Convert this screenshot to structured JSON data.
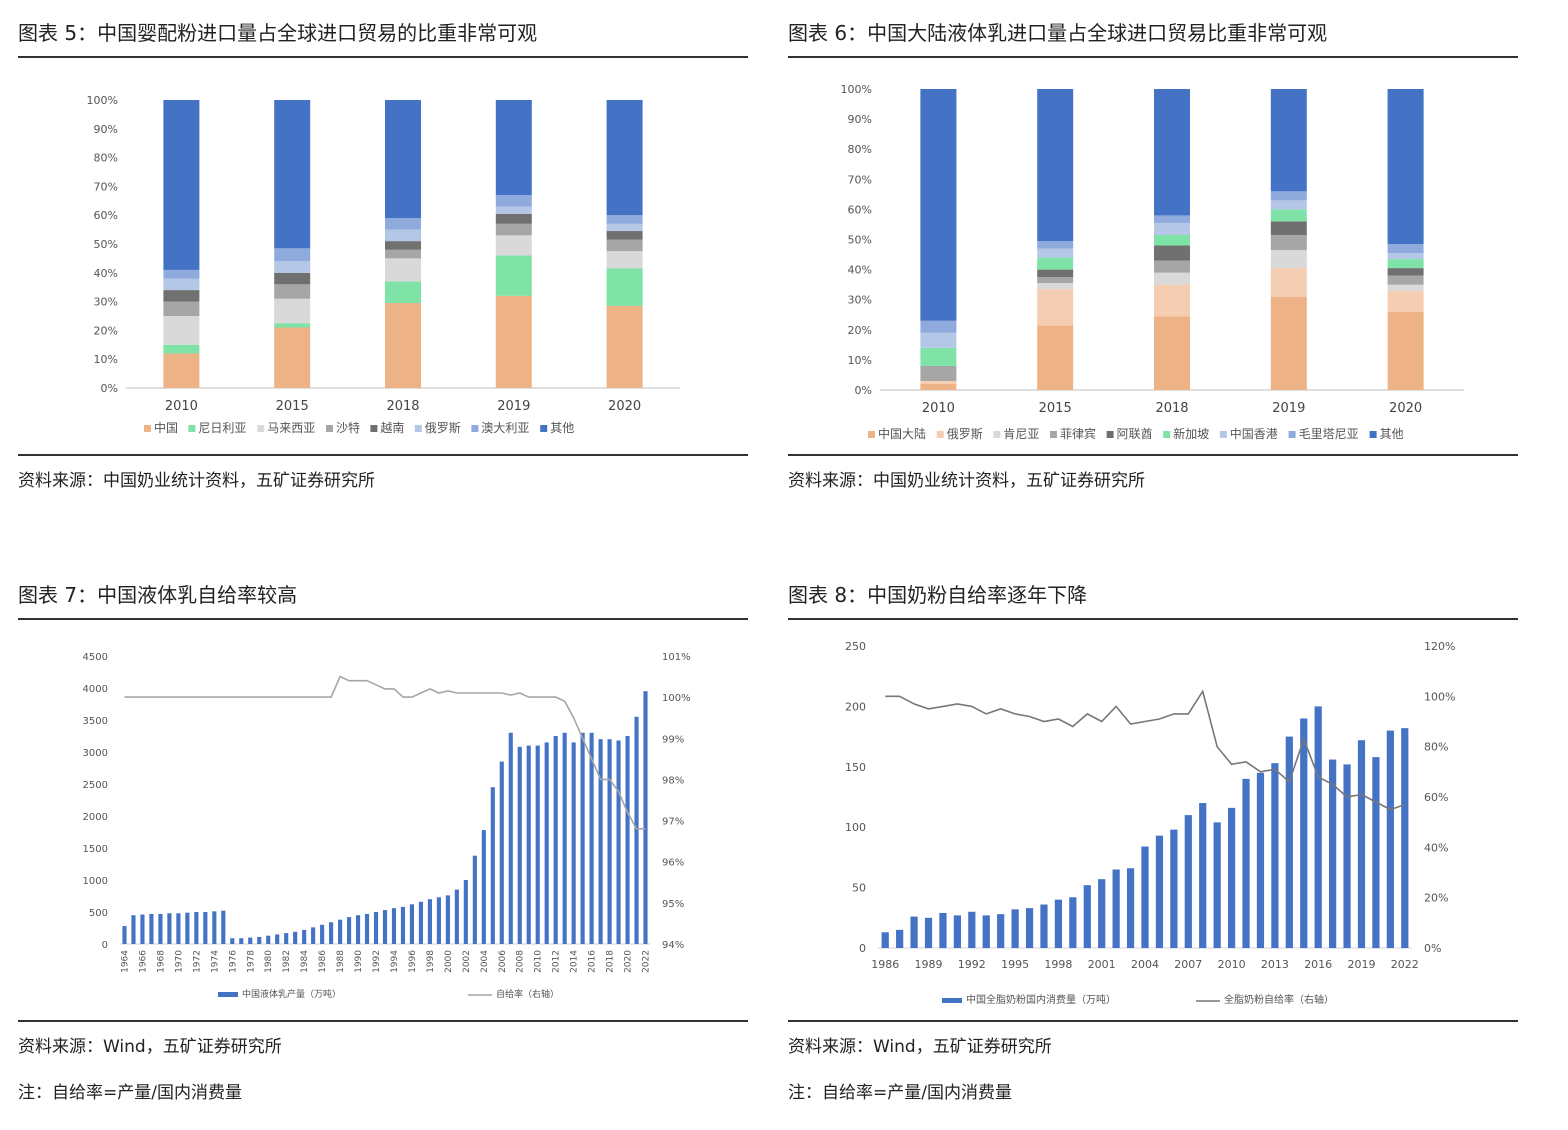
{
  "panels": [
    {
      "title": "图表 5：中国婴配粉进口量占全球进口贸易的比重非常可观",
      "source": "资料来源：中国奶业统计资料，五矿证券研究所"
    },
    {
      "title": "图表 6：中国大陆液体乳进口量占全球进口贸易比重非常可观",
      "source": "资料来源：中国奶业统计资料，五矿证券研究所"
    },
    {
      "title": "图表 7：中国液体乳自给率较高",
      "source": "资料来源：Wind，五矿证券研究所",
      "note": "注：自给率=产量/国内消费量"
    },
    {
      "title": "图表 8：中国奶粉自给率逐年下降",
      "source": "资料来源：Wind，五矿证券研究所",
      "note": "注：自给率=产量/国内消费量"
    }
  ],
  "chart_data": [
    {
      "type": "bar",
      "stacked": true,
      "categories": [
        "2010",
        "2015",
        "2018",
        "2019",
        "2020"
      ],
      "yticks": [
        "0%",
        "10%",
        "20%",
        "30%",
        "40%",
        "50%",
        "60%",
        "70%",
        "80%",
        "90%",
        "100%"
      ],
      "ylim": [
        0,
        100
      ],
      "legend_position": "bottom",
      "series": [
        {
          "name": "中国",
          "color": "#EDB386",
          "values": [
            12,
            21,
            29.5,
            32,
            28.5
          ]
        },
        {
          "name": "尼日利亚",
          "color": "#7FE3A7",
          "values": [
            3,
            1.5,
            7.5,
            14,
            13
          ]
        },
        {
          "name": "马来西亚",
          "color": "#D9D9D9",
          "values": [
            10,
            8.5,
            8,
            7,
            6
          ]
        },
        {
          "name": "沙特",
          "color": "#A6A6A6",
          "values": [
            5,
            5,
            3,
            4,
            4
          ]
        },
        {
          "name": "越南",
          "color": "#707070",
          "values": [
            4,
            4,
            3,
            3.5,
            3
          ]
        },
        {
          "name": "俄罗斯",
          "color": "#B4C7E7",
          "values": [
            4,
            4,
            4,
            2.5,
            2.5
          ]
        },
        {
          "name": "澳大利亚",
          "color": "#8FAADC",
          "values": [
            3,
            4.5,
            4,
            4,
            3
          ]
        },
        {
          "name": "其他",
          "color": "#4472C4",
          "values": [
            59,
            51.5,
            41,
            33,
            40
          ]
        }
      ]
    },
    {
      "type": "bar",
      "stacked": true,
      "categories": [
        "2010",
        "2015",
        "2018",
        "2019",
        "2020"
      ],
      "yticks": [
        "0%",
        "10%",
        "20%",
        "30%",
        "40%",
        "50%",
        "60%",
        "70%",
        "80%",
        "90%",
        "100%"
      ],
      "ylim": [
        0,
        100
      ],
      "legend_position": "bottom",
      "series": [
        {
          "name": "中国大陆",
          "color": "#EDB386",
          "values": [
            2,
            21.5,
            24.5,
            31,
            26
          ]
        },
        {
          "name": "俄罗斯",
          "color": "#F5CDB2",
          "values": [
            1,
            12,
            10.5,
            9.5,
            7
          ]
        },
        {
          "name": "肯尼亚",
          "color": "#D9D9D9",
          "values": [
            0,
            2,
            4,
            6,
            2
          ]
        },
        {
          "name": "菲律宾",
          "color": "#A6A6A6",
          "values": [
            5,
            2,
            4,
            5,
            3
          ]
        },
        {
          "name": "阿联酋",
          "color": "#707070",
          "values": [
            0,
            2.5,
            5,
            4.5,
            2.5
          ]
        },
        {
          "name": "新加坡",
          "color": "#7FE3A7",
          "values": [
            6,
            4,
            3.5,
            4,
            3
          ]
        },
        {
          "name": "中国香港",
          "color": "#B4C7E7",
          "values": [
            5,
            3,
            4,
            3,
            2
          ]
        },
        {
          "name": "毛里塔尼亚",
          "color": "#8FAADC",
          "values": [
            4,
            2.5,
            2.5,
            3,
            3
          ]
        },
        {
          "name": "其他",
          "color": "#4472C4",
          "values": [
            77,
            50.5,
            42,
            34,
            51.5
          ]
        }
      ]
    },
    {
      "type": "bar+line",
      "x": [
        "1964",
        "1965",
        "1966",
        "1967",
        "1968",
        "1969",
        "1970",
        "1971",
        "1972",
        "1973",
        "1974",
        "1975",
        "1976",
        "1977",
        "1978",
        "1979",
        "1980",
        "1981",
        "1982",
        "1983",
        "1984",
        "1985",
        "1986",
        "1987",
        "1988",
        "1989",
        "1990",
        "1991",
        "1992",
        "1993",
        "1994",
        "1995",
        "1996",
        "1997",
        "1998",
        "1999",
        "2000",
        "2001",
        "2002",
        "2003",
        "2004",
        "2005",
        "2006",
        "2007",
        "2008",
        "2009",
        "2010",
        "2011",
        "2012",
        "2013",
        "2014",
        "2015",
        "2016",
        "2017",
        "2018",
        "2019",
        "2020",
        "2021",
        "2022"
      ],
      "xticks": [
        "1964",
        "1966",
        "1968",
        "1970",
        "1972",
        "1974",
        "1976",
        "1978",
        "1980",
        "1982",
        "1984",
        "1986",
        "1988",
        "1990",
        "1992",
        "1994",
        "1996",
        "1998",
        "2000",
        "2002",
        "2004",
        "2006",
        "2008",
        "2010",
        "2012",
        "2014",
        "2016",
        "2018",
        "2020",
        "2022"
      ],
      "yticks_left": [
        "0",
        "500",
        "1000",
        "1500",
        "2000",
        "2500",
        "3000",
        "3500",
        "4000",
        "4500"
      ],
      "yticks_right": [
        "94%",
        "95%",
        "96%",
        "97%",
        "98%",
        "99%",
        "100%",
        "101%"
      ],
      "ylim_left": [
        0,
        4500
      ],
      "ylim_right": [
        94,
        101
      ],
      "series": [
        {
          "name": "中国液体乳产量（万吨）",
          "type": "bar",
          "axis": "left",
          "color": "#4472C4",
          "values": [
            280,
            450,
            460,
            470,
            470,
            480,
            480,
            490,
            500,
            500,
            510,
            520,
            90,
            90,
            100,
            110,
            130,
            150,
            170,
            190,
            220,
            260,
            300,
            340,
            380,
            420,
            450,
            470,
            500,
            530,
            560,
            580,
            620,
            660,
            700,
            730,
            760,
            850,
            1000,
            1380,
            1780,
            2450,
            2850,
            3300,
            3080,
            3100,
            3100,
            3150,
            3250,
            3300,
            3150,
            3300,
            3300,
            3200,
            3200,
            3180,
            3250,
            3550,
            3950
          ]
        },
        {
          "name": "自给率（右轴）",
          "type": "line",
          "axis": "right",
          "color": "#A6A6A6",
          "values": [
            100,
            100,
            100,
            100,
            100,
            100,
            100,
            100,
            100,
            100,
            100,
            100,
            100,
            100,
            100,
            100,
            100,
            100,
            100,
            100,
            100,
            100,
            100,
            100,
            100.5,
            100.4,
            100.4,
            100.4,
            100.3,
            100.2,
            100.2,
            100,
            100,
            100.1,
            100.2,
            100.1,
            100.15,
            100.1,
            100.1,
            100.1,
            100.1,
            100.1,
            100.1,
            100.05,
            100.1,
            100,
            100,
            100,
            100,
            99.9,
            99.5,
            99,
            98.5,
            98,
            98,
            97.7,
            97.2,
            96.8,
            96.8
          ]
        }
      ]
    },
    {
      "type": "bar+line",
      "x": [
        "1986",
        "1987",
        "1988",
        "1989",
        "1990",
        "1991",
        "1992",
        "1993",
        "1994",
        "1995",
        "1996",
        "1997",
        "1998",
        "1999",
        "2000",
        "2001",
        "2002",
        "2003",
        "2004",
        "2005",
        "2006",
        "2007",
        "2008",
        "2009",
        "2010",
        "2011",
        "2012",
        "2013",
        "2014",
        "2015",
        "2016",
        "2017",
        "2018",
        "2019",
        "2020",
        "2021",
        "2022"
      ],
      "xticks": [
        "1986",
        "1989",
        "1992",
        "1995",
        "1998",
        "2001",
        "2004",
        "2007",
        "2010",
        "2013",
        "2016",
        "2019",
        "2022"
      ],
      "yticks_left": [
        "0",
        "50",
        "100",
        "150",
        "200",
        "250"
      ],
      "yticks_right": [
        "0%",
        "20%",
        "40%",
        "60%",
        "80%",
        "100%",
        "120%"
      ],
      "ylim_left": [
        0,
        250
      ],
      "ylim_right": [
        0,
        120
      ],
      "series": [
        {
          "name": "中国全脂奶粉国内消费量（万吨）",
          "type": "bar",
          "axis": "left",
          "color": "#4472C4",
          "values": [
            13,
            15,
            26,
            25,
            29,
            27,
            30,
            27,
            28,
            32,
            33,
            36,
            40,
            42,
            52,
            57,
            65,
            66,
            84,
            93,
            98,
            110,
            120,
            104,
            116,
            140,
            145,
            153,
            175,
            190,
            200,
            156,
            152,
            172,
            158,
            180,
            182
          ]
        },
        {
          "name": "全脂奶粉自给率（右轴）",
          "type": "line",
          "axis": "right",
          "color": "#777777",
          "values": [
            100,
            100,
            97,
            95,
            96,
            97,
            96,
            93,
            95,
            93,
            92,
            90,
            91,
            88,
            93,
            90,
            96,
            89,
            90,
            91,
            93,
            93,
            102,
            80,
            73,
            74,
            70,
            71,
            66,
            83,
            68,
            65,
            60,
            61,
            58,
            55,
            57
          ]
        }
      ]
    }
  ]
}
